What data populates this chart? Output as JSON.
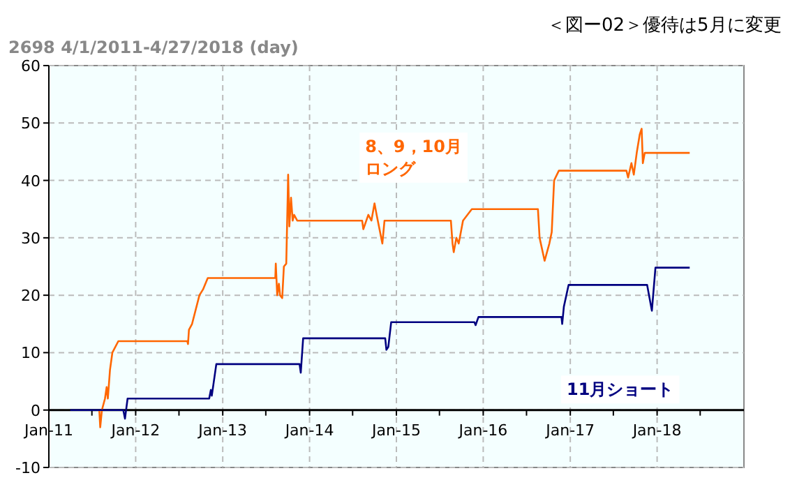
{
  "chart_data": {
    "type": "line",
    "title": "＜図ー02＞優待は5月に変更",
    "subtitle": "2698 4/1/2011-4/27/2018 (day)",
    "xlim": [
      "2011-01-01",
      "2019-01-01"
    ],
    "xticks": [
      {
        "value": "2011-01-01",
        "label": "Jan-11"
      },
      {
        "value": "2011-07-01",
        "label": null
      },
      {
        "value": "2012-01-01",
        "label": "Jan-12"
      },
      {
        "value": "2012-07-01",
        "label": null
      },
      {
        "value": "2013-01-01",
        "label": "Jan-13"
      },
      {
        "value": "2013-07-01",
        "label": null
      },
      {
        "value": "2014-01-01",
        "label": "Jan-14"
      },
      {
        "value": "2014-07-01",
        "label": null
      },
      {
        "value": "2015-01-01",
        "label": "Jan-15"
      },
      {
        "value": "2015-07-01",
        "label": null
      },
      {
        "value": "2016-01-01",
        "label": "Jan-16"
      },
      {
        "value": "2016-07-01",
        "label": null
      },
      {
        "value": "2017-01-01",
        "label": "Jan-17"
      },
      {
        "value": "2017-07-01",
        "label": null
      },
      {
        "value": "2018-01-01",
        "label": "Jan-18"
      },
      {
        "value": "2018-07-01",
        "label": null
      }
    ],
    "ylim": [
      -10,
      60
    ],
    "yticks": [
      -10,
      0,
      10,
      20,
      30,
      40,
      50,
      60
    ],
    "grid": true,
    "marker": "none",
    "line_style": "solid",
    "series": [
      {
        "name": "8、9，10月ロング",
        "color": "#ff6600",
        "x": [
          "2011-08-01",
          "2011-08-05",
          "2011-08-12",
          "2011-08-25",
          "2011-09-01",
          "2011-09-06",
          "2011-09-15",
          "2011-09-25",
          "2011-10-20",
          "2012-08-05",
          "2012-08-08",
          "2012-08-12",
          "2012-08-25",
          "2012-09-25",
          "2012-10-10",
          "2012-10-30",
          "2013-08-10",
          "2013-08-12",
          "2013-08-18",
          "2013-08-25",
          "2013-08-30",
          "2013-09-08",
          "2013-09-15",
          "2013-09-25",
          "2013-10-03",
          "2013-10-08",
          "2013-10-15",
          "2013-10-22",
          "2013-10-28",
          "2013-11-10",
          "2014-08-10",
          "2014-08-15",
          "2014-09-05",
          "2014-09-18",
          "2014-10-01",
          "2014-10-10",
          "2014-11-03",
          "2014-11-12",
          "2015-08-18",
          "2015-08-25",
          "2015-08-30",
          "2015-09-10",
          "2015-09-20",
          "2015-10-08",
          "2015-11-14",
          "2016-08-18",
          "2016-08-25",
          "2016-09-15",
          "2016-10-05",
          "2016-10-15",
          "2016-10-25",
          "2016-11-14",
          "2017-08-25",
          "2017-09-01",
          "2017-09-15",
          "2017-09-25",
          "2017-10-08",
          "2017-10-20",
          "2017-10-28",
          "2017-11-02",
          "2017-11-10",
          "2018-05-18"
        ],
        "values": [
          0,
          -3,
          0,
          2,
          4,
          2,
          7,
          10,
          12,
          12,
          11.5,
          14,
          15,
          20,
          21,
          23,
          23,
          25.5,
          20,
          22,
          20,
          19.5,
          25,
          25.5,
          41,
          32,
          37,
          33,
          34,
          33,
          33,
          31.5,
          34,
          33,
          36,
          34,
          29,
          33,
          33,
          29,
          27.5,
          30,
          29,
          33,
          35,
          35,
          30,
          26,
          29,
          31,
          40,
          41.7,
          41.7,
          40.5,
          43,
          41,
          45,
          48,
          49,
          43,
          44.8,
          44.8
        ]
      },
      {
        "name": "11月ショート",
        "color": "#000080",
        "x": [
          "2011-04-01",
          "2011-11-10",
          "2011-11-17",
          "2011-11-28",
          "2012-11-05",
          "2012-11-12",
          "2012-11-16",
          "2012-12-05",
          "2013-11-20",
          "2013-11-25",
          "2013-12-05",
          "2014-11-15",
          "2014-11-20",
          "2014-11-28",
          "2014-12-10",
          "2015-11-25",
          "2015-11-30",
          "2015-12-12",
          "2016-11-25",
          "2016-11-28",
          "2016-12-05",
          "2016-12-25",
          "2017-11-20",
          "2017-11-28",
          "2017-12-10",
          "2017-12-25",
          "2018-05-18"
        ],
        "values": [
          0,
          0,
          -1.5,
          2,
          2,
          3.5,
          2.5,
          8,
          8,
          6.5,
          12.5,
          12.5,
          10.5,
          11,
          15.3,
          15.3,
          14.8,
          16.2,
          16.2,
          15,
          18,
          21.8,
          21.8,
          20,
          17.3,
          24.8,
          24.8
        ]
      }
    ]
  }
}
